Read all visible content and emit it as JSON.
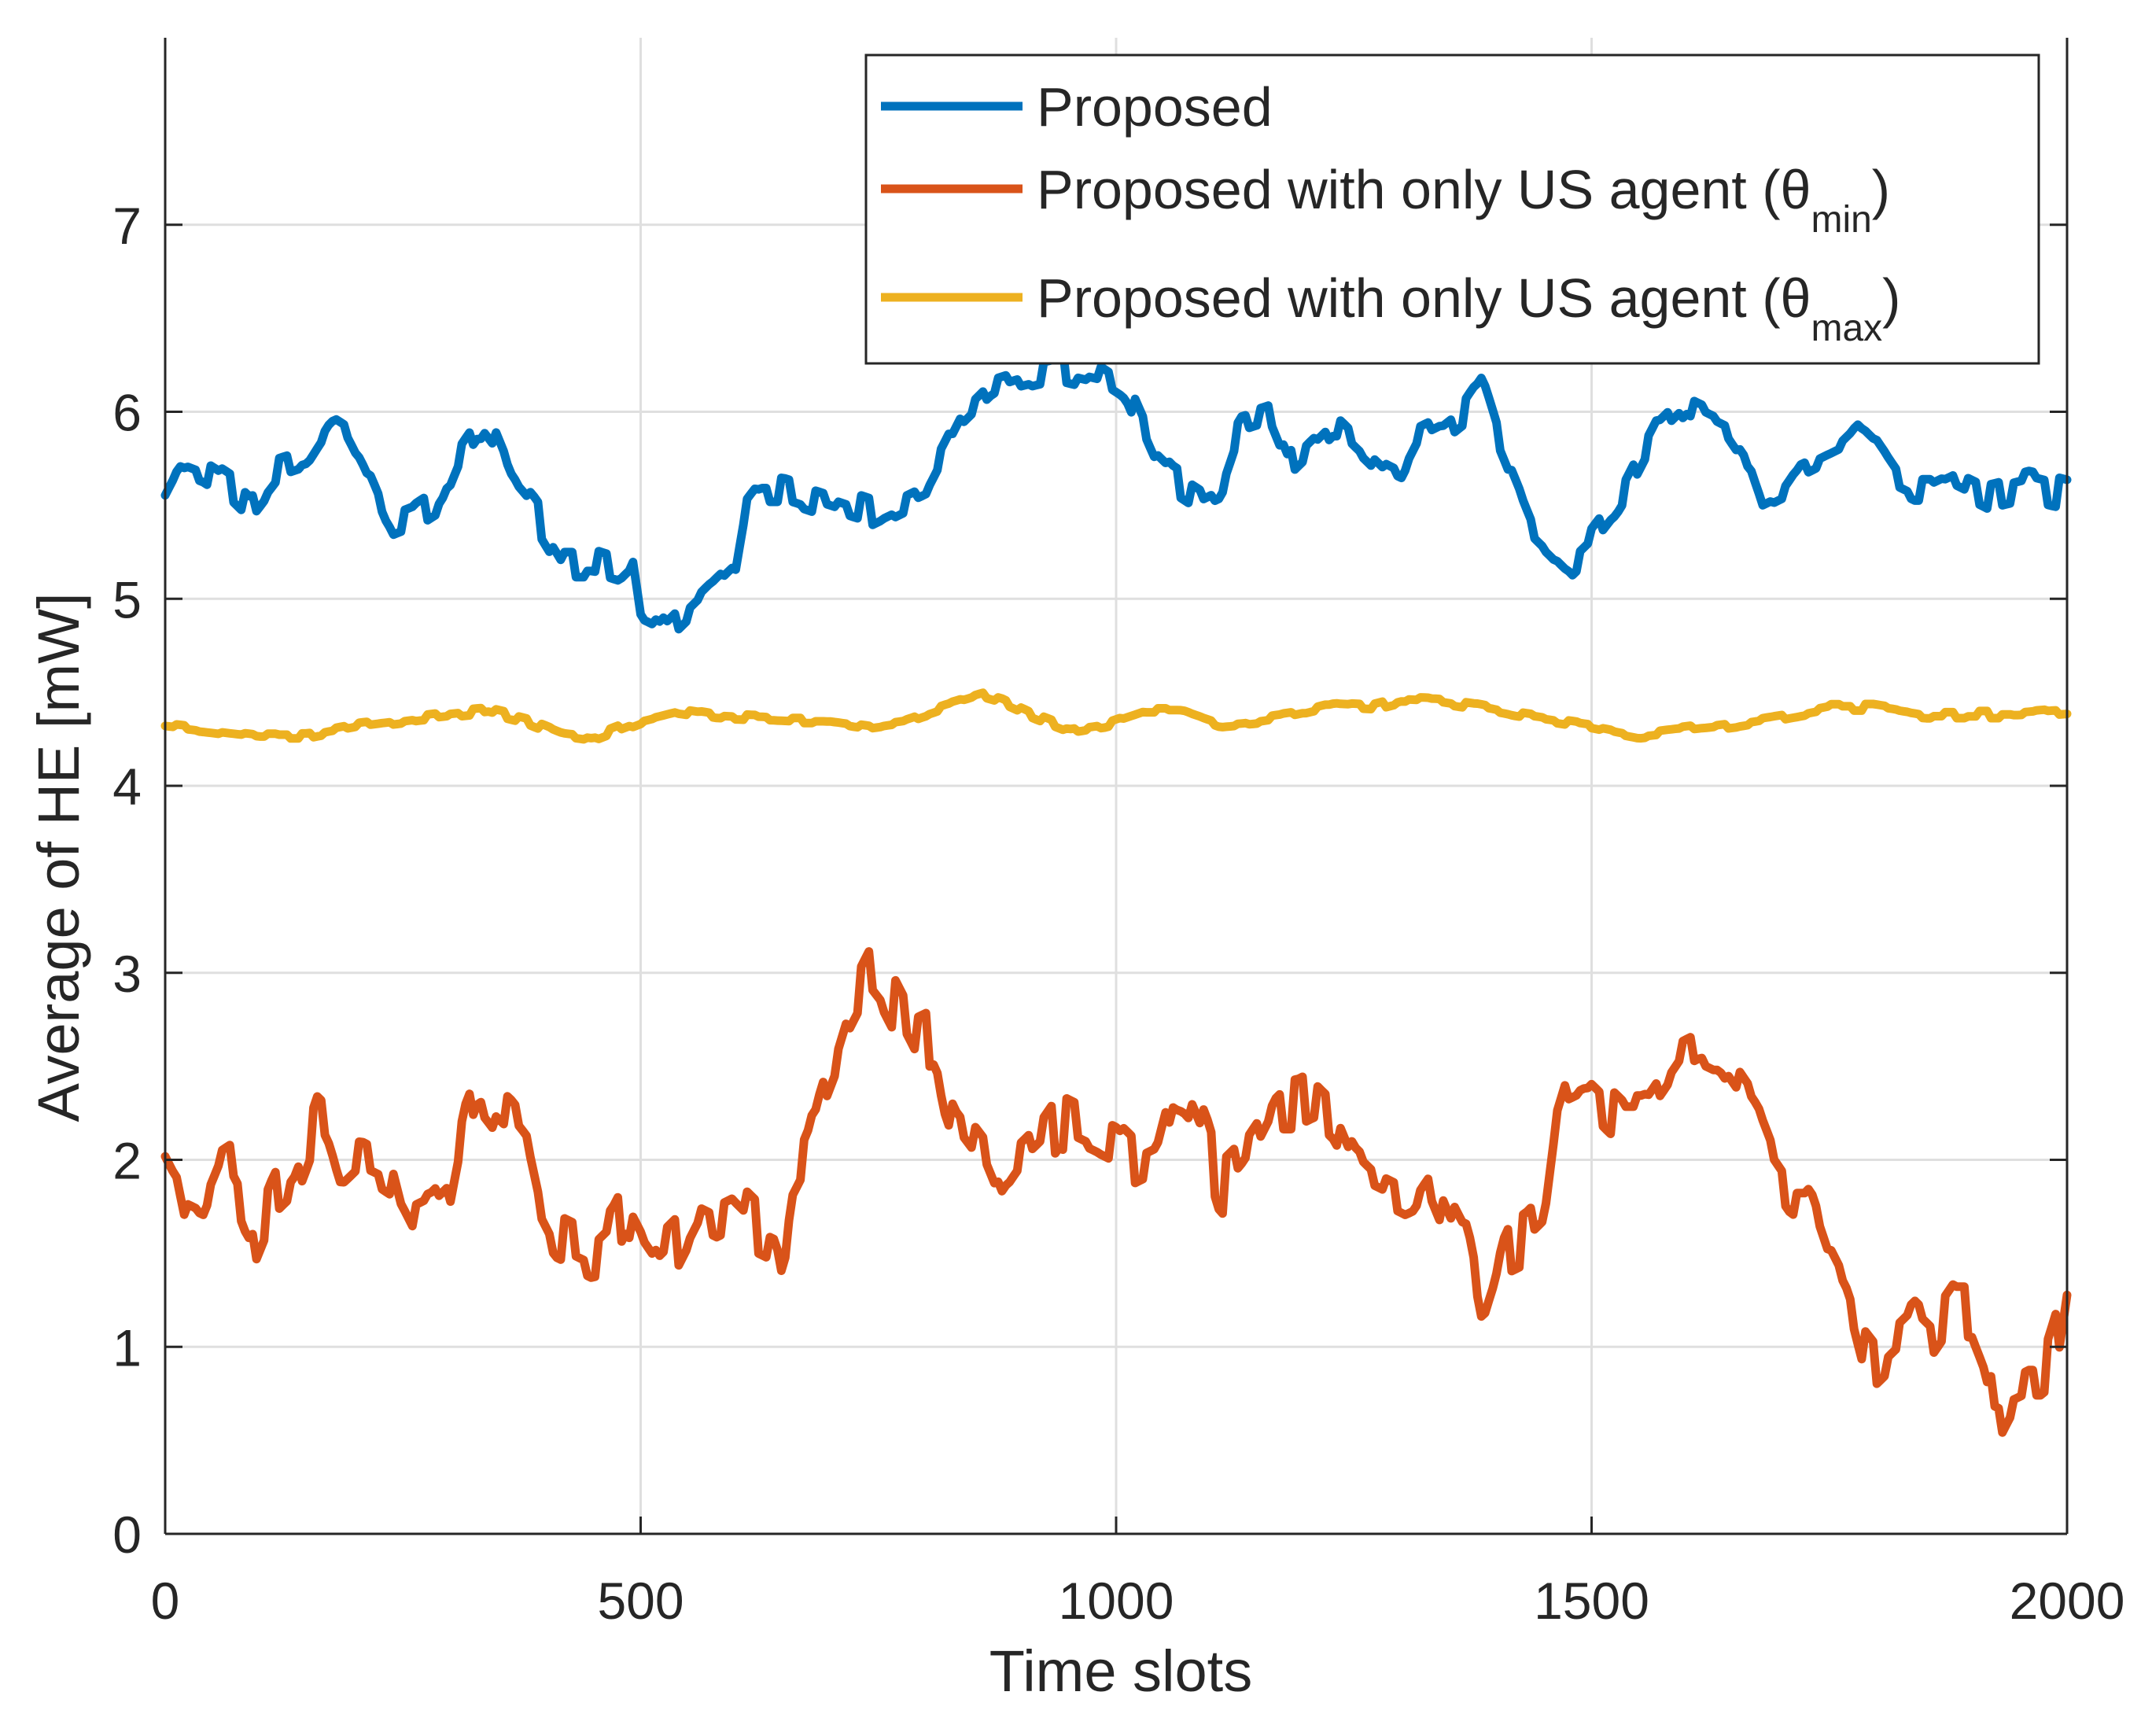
{
  "chart_data": {
    "type": "line",
    "title": "",
    "xlabel": "Time slots",
    "ylabel": "Average of HE [mW]",
    "xlim": [
      0,
      2000
    ],
    "ylim": [
      0,
      8
    ],
    "xticks": [
      0,
      500,
      1000,
      1500,
      2000
    ],
    "yticks": [
      0,
      1,
      2,
      3,
      4,
      5,
      6,
      7
    ],
    "grid": true,
    "legend_position": "top-right",
    "series": [
      {
        "name": "Proposed",
        "legend": {
          "main": "Proposed",
          "sub": "",
          "close": ""
        },
        "color": "#0072BD",
        "noise": 0.09,
        "seed": 11,
        "points": [
          [
            0,
            5.6
          ],
          [
            15,
            5.75
          ],
          [
            40,
            5.7
          ],
          [
            70,
            5.6
          ],
          [
            90,
            5.5
          ],
          [
            120,
            5.7
          ],
          [
            150,
            5.75
          ],
          [
            175,
            5.95
          ],
          [
            190,
            5.9
          ],
          [
            210,
            5.7
          ],
          [
            235,
            5.4
          ],
          [
            260,
            5.45
          ],
          [
            290,
            5.55
          ],
          [
            310,
            5.8
          ],
          [
            330,
            5.95
          ],
          [
            345,
            5.85
          ],
          [
            365,
            5.6
          ],
          [
            390,
            5.45
          ],
          [
            420,
            5.2
          ],
          [
            450,
            5.2
          ],
          [
            480,
            5.15
          ],
          [
            490,
            5.2
          ],
          [
            500,
            4.85
          ],
          [
            520,
            4.8
          ],
          [
            540,
            4.9
          ],
          [
            560,
            5.0
          ],
          [
            580,
            5.1
          ],
          [
            600,
            5.2
          ],
          [
            610,
            5.5
          ],
          [
            625,
            5.6
          ],
          [
            650,
            5.6
          ],
          [
            680,
            5.55
          ],
          [
            710,
            5.5
          ],
          [
            740,
            5.45
          ],
          [
            760,
            5.5
          ],
          [
            780,
            5.55
          ],
          [
            800,
            5.6
          ],
          [
            820,
            5.8
          ],
          [
            840,
            6.0
          ],
          [
            870,
            6.15
          ],
          [
            900,
            6.2
          ],
          [
            940,
            6.25
          ],
          [
            980,
            6.2
          ],
          [
            1010,
            6.1
          ],
          [
            1040,
            5.75
          ],
          [
            1060,
            5.65
          ],
          [
            1090,
            5.55
          ],
          [
            1110,
            5.6
          ],
          [
            1130,
            5.9
          ],
          [
            1160,
            5.95
          ],
          [
            1180,
            5.7
          ],
          [
            1200,
            5.8
          ],
          [
            1230,
            5.95
          ],
          [
            1260,
            5.8
          ],
          [
            1280,
            5.7
          ],
          [
            1300,
            5.65
          ],
          [
            1320,
            5.85
          ],
          [
            1340,
            5.9
          ],
          [
            1365,
            6.0
          ],
          [
            1385,
            6.15
          ],
          [
            1400,
            5.9
          ],
          [
            1420,
            5.65
          ],
          [
            1440,
            5.4
          ],
          [
            1460,
            5.3
          ],
          [
            1480,
            5.2
          ],
          [
            1500,
            5.3
          ],
          [
            1530,
            5.5
          ],
          [
            1550,
            5.7
          ],
          [
            1570,
            5.9
          ],
          [
            1600,
            6.05
          ],
          [
            1620,
            6.0
          ],
          [
            1640,
            5.95
          ],
          [
            1660,
            5.8
          ],
          [
            1680,
            5.5
          ],
          [
            1700,
            5.55
          ],
          [
            1720,
            5.7
          ],
          [
            1740,
            5.75
          ],
          [
            1760,
            5.8
          ],
          [
            1780,
            5.9
          ],
          [
            1800,
            5.8
          ],
          [
            1820,
            5.65
          ],
          [
            1840,
            5.6
          ],
          [
            1860,
            5.6
          ],
          [
            1880,
            5.65
          ],
          [
            1900,
            5.6
          ],
          [
            1920,
            5.55
          ],
          [
            1960,
            5.6
          ],
          [
            2000,
            5.55
          ]
        ]
      },
      {
        "name": "Proposed with only US agent (θmin)",
        "legend": {
          "main": "Proposed with only US agent (θ",
          "sub": "min",
          "close": ")"
        },
        "color": "#D95319",
        "noise": 0.16,
        "seed": 23,
        "points": [
          [
            0,
            2.1
          ],
          [
            10,
            2.0
          ],
          [
            20,
            1.75
          ],
          [
            40,
            1.7
          ],
          [
            60,
            1.95
          ],
          [
            75,
            2.0
          ],
          [
            85,
            1.5
          ],
          [
            95,
            1.55
          ],
          [
            115,
            1.8
          ],
          [
            135,
            1.9
          ],
          [
            150,
            2.1
          ],
          [
            160,
            2.25
          ],
          [
            170,
            2.2
          ],
          [
            185,
            1.95
          ],
          [
            205,
            2.05
          ],
          [
            225,
            2.0
          ],
          [
            240,
            1.95
          ],
          [
            250,
            1.75
          ],
          [
            260,
            1.65
          ],
          [
            280,
            1.7
          ],
          [
            300,
            1.8
          ],
          [
            315,
            2.2
          ],
          [
            330,
            2.4
          ],
          [
            345,
            2.3
          ],
          [
            365,
            2.2
          ],
          [
            380,
            2.1
          ],
          [
            395,
            1.75
          ],
          [
            410,
            1.6
          ],
          [
            430,
            1.55
          ],
          [
            450,
            1.5
          ],
          [
            470,
            1.6
          ],
          [
            485,
            1.75
          ],
          [
            500,
            1.6
          ],
          [
            520,
            1.45
          ],
          [
            540,
            1.55
          ],
          [
            560,
            1.75
          ],
          [
            580,
            1.7
          ],
          [
            600,
            1.75
          ],
          [
            620,
            1.65
          ],
          [
            640,
            1.6
          ],
          [
            650,
            1.45
          ],
          [
            660,
            1.95
          ],
          [
            675,
            2.1
          ],
          [
            690,
            2.4
          ],
          [
            705,
            2.6
          ],
          [
            720,
            2.85
          ],
          [
            740,
            3.05
          ],
          [
            755,
            2.95
          ],
          [
            770,
            2.8
          ],
          [
            790,
            2.6
          ],
          [
            810,
            2.65
          ],
          [
            820,
            2.4
          ],
          [
            830,
            2.25
          ],
          [
            845,
            2.15
          ],
          [
            860,
            2.05
          ],
          [
            880,
            1.8
          ],
          [
            900,
            1.95
          ],
          [
            920,
            2.05
          ],
          [
            940,
            2.2
          ],
          [
            960,
            2.15
          ],
          [
            980,
            2.1
          ],
          [
            1000,
            2.05
          ],
          [
            1020,
            1.95
          ],
          [
            1040,
            2.0
          ],
          [
            1060,
            2.4
          ],
          [
            1075,
            2.35
          ],
          [
            1095,
            2.1
          ],
          [
            1110,
            1.85
          ],
          [
            1130,
            1.95
          ],
          [
            1150,
            2.1
          ],
          [
            1170,
            2.3
          ],
          [
            1190,
            2.3
          ],
          [
            1210,
            2.35
          ],
          [
            1230,
            2.25
          ],
          [
            1250,
            2.0
          ],
          [
            1270,
            1.9
          ],
          [
            1290,
            1.85
          ],
          [
            1310,
            1.8
          ],
          [
            1330,
            1.95
          ],
          [
            1350,
            1.7
          ],
          [
            1370,
            1.5
          ],
          [
            1385,
            1.1
          ],
          [
            1395,
            1.25
          ],
          [
            1410,
            1.55
          ],
          [
            1430,
            1.6
          ],
          [
            1450,
            1.7
          ],
          [
            1460,
            2.1
          ],
          [
            1475,
            2.35
          ],
          [
            1495,
            2.4
          ],
          [
            1515,
            2.3
          ],
          [
            1535,
            2.2
          ],
          [
            1555,
            2.2
          ],
          [
            1575,
            2.35
          ],
          [
            1595,
            2.5
          ],
          [
            1615,
            2.55
          ],
          [
            1635,
            2.5
          ],
          [
            1655,
            2.35
          ],
          [
            1675,
            2.2
          ],
          [
            1690,
            2.0
          ],
          [
            1710,
            1.85
          ],
          [
            1730,
            1.85
          ],
          [
            1750,
            1.55
          ],
          [
            1770,
            1.35
          ],
          [
            1785,
            1.05
          ],
          [
            1800,
            0.95
          ],
          [
            1820,
            1.05
          ],
          [
            1840,
            1.15
          ],
          [
            1860,
            1.05
          ],
          [
            1880,
            1.2
          ],
          [
            1900,
            1.2
          ],
          [
            1915,
            1.0
          ],
          [
            1925,
            0.6
          ],
          [
            1940,
            0.75
          ],
          [
            1960,
            0.8
          ],
          [
            1975,
            0.8
          ],
          [
            1990,
            1.05
          ],
          [
            2000,
            1.4
          ]
        ]
      },
      {
        "name": "Proposed with only US agent (θmax)",
        "legend": {
          "main": "Proposed with only US agent (θ",
          "sub": "max",
          "close": ")"
        },
        "color": "#EDB120",
        "noise": 0.02,
        "seed": 37,
        "points": [
          [
            0,
            4.33
          ],
          [
            50,
            4.3
          ],
          [
            100,
            4.27
          ],
          [
            150,
            4.27
          ],
          [
            200,
            4.32
          ],
          [
            250,
            4.35
          ],
          [
            300,
            4.38
          ],
          [
            340,
            4.4
          ],
          [
            380,
            4.35
          ],
          [
            420,
            4.27
          ],
          [
            450,
            4.25
          ],
          [
            500,
            4.35
          ],
          [
            540,
            4.4
          ],
          [
            580,
            4.37
          ],
          [
            620,
            4.36
          ],
          [
            660,
            4.35
          ],
          [
            700,
            4.35
          ],
          [
            740,
            4.32
          ],
          [
            780,
            4.35
          ],
          [
            820,
            4.42
          ],
          [
            860,
            4.48
          ],
          [
            880,
            4.45
          ],
          [
            910,
            4.38
          ],
          [
            950,
            4.3
          ],
          [
            990,
            4.33
          ],
          [
            1030,
            4.4
          ],
          [
            1070,
            4.4
          ],
          [
            1110,
            4.33
          ],
          [
            1150,
            4.35
          ],
          [
            1190,
            4.38
          ],
          [
            1230,
            4.43
          ],
          [
            1270,
            4.42
          ],
          [
            1300,
            4.46
          ],
          [
            1340,
            4.45
          ],
          [
            1380,
            4.42
          ],
          [
            1420,
            4.38
          ],
          [
            1460,
            4.35
          ],
          [
            1500,
            4.32
          ],
          [
            1550,
            4.27
          ],
          [
            1600,
            4.3
          ],
          [
            1650,
            4.33
          ],
          [
            1700,
            4.37
          ],
          [
            1750,
            4.42
          ],
          [
            1800,
            4.42
          ],
          [
            1850,
            4.38
          ],
          [
            1900,
            4.38
          ],
          [
            1950,
            4.38
          ],
          [
            2000,
            4.4
          ]
        ]
      }
    ]
  }
}
